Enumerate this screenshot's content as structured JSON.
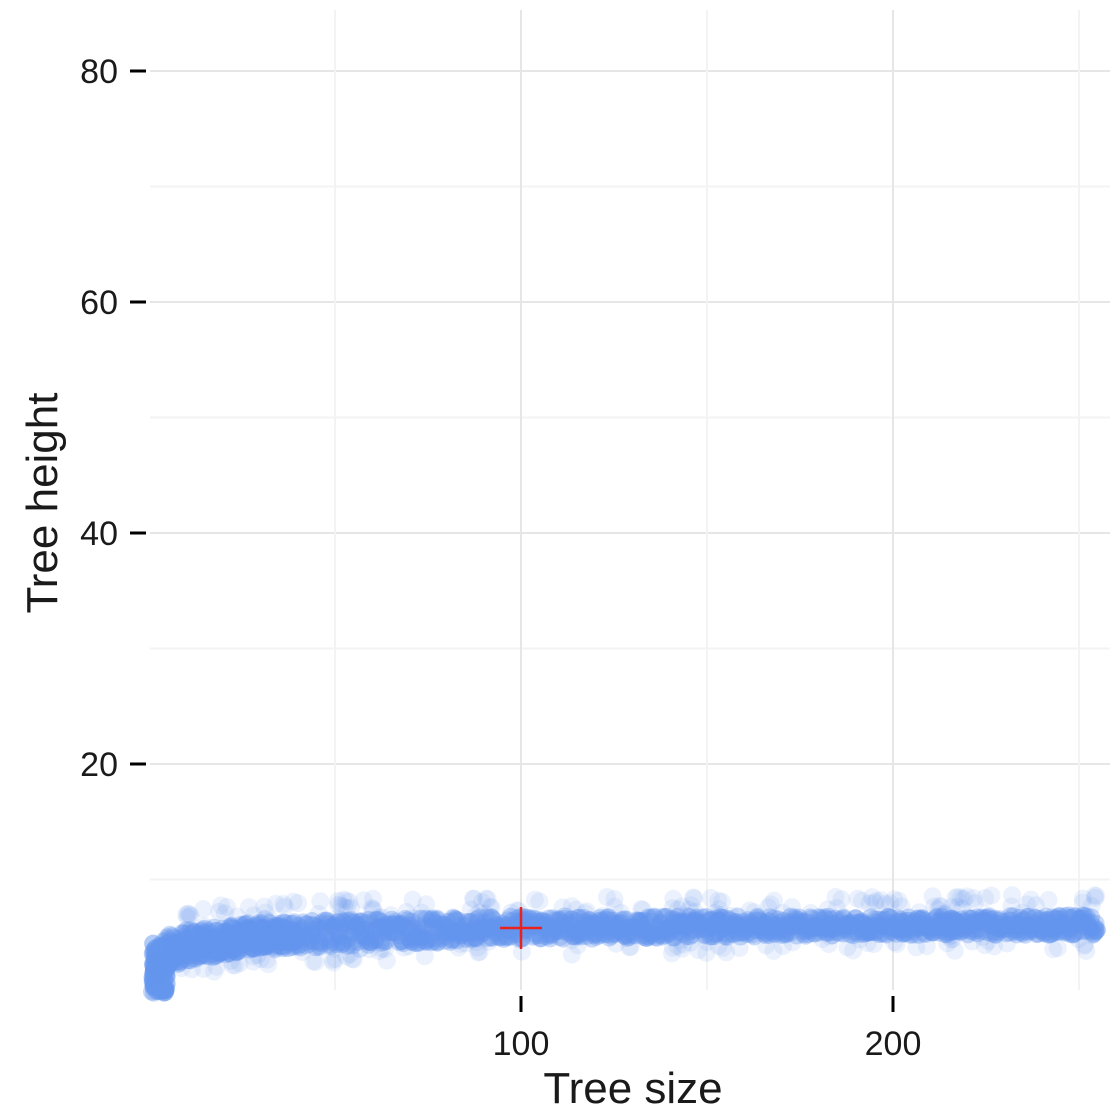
{
  "chart_data": {
    "type": "scatter",
    "xlabel": "Tree size",
    "ylabel": "Tree height",
    "xlim": [
      1,
      255
    ],
    "ylim": [
      0,
      84
    ],
    "x_ticks": [
      100,
      200
    ],
    "y_ticks": [
      20,
      40,
      60,
      80
    ],
    "x_tick_labels": [
      "100",
      "200"
    ],
    "y_tick_labels": [
      "20",
      "40",
      "60",
      "80"
    ],
    "grid": true,
    "point_color": "#6495ED",
    "marker": {
      "type": "cross",
      "color": "#E8231E",
      "x": 100,
      "y": 5.8
    },
    "band_summary": [
      {
        "x": 1,
        "y_low": 0,
        "y_high": 2.5
      },
      {
        "x": 5,
        "y_low": 2.5,
        "y_high": 5.5
      },
      {
        "x": 25,
        "y_low": 3.8,
        "y_high": 6.2
      },
      {
        "x": 50,
        "y_low": 4.2,
        "y_high": 6.5
      },
      {
        "x": 100,
        "y_low": 4.8,
        "y_high": 6.8
      },
      {
        "x": 150,
        "y_low": 5.0,
        "y_high": 6.8
      },
      {
        "x": 200,
        "y_low": 5.2,
        "y_high": 6.8
      },
      {
        "x": 255,
        "y_low": 5.2,
        "y_high": 6.9
      }
    ]
  }
}
